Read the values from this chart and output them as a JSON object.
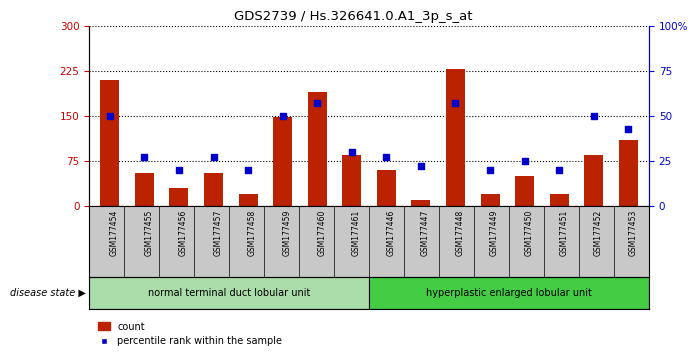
{
  "title": "GDS2739 / Hs.326641.0.A1_3p_s_at",
  "samples": [
    "GSM177454",
    "GSM177455",
    "GSM177456",
    "GSM177457",
    "GSM177458",
    "GSM177459",
    "GSM177460",
    "GSM177461",
    "GSM177446",
    "GSM177447",
    "GSM177448",
    "GSM177449",
    "GSM177450",
    "GSM177451",
    "GSM177452",
    "GSM177453"
  ],
  "counts": [
    210,
    55,
    30,
    55,
    20,
    148,
    190,
    85,
    60,
    10,
    228,
    20,
    50,
    20,
    85,
    110
  ],
  "percentiles": [
    50,
    27,
    20,
    27,
    20,
    50,
    57,
    30,
    27,
    22,
    57,
    20,
    25,
    20,
    50,
    43
  ],
  "group1_label": "normal terminal duct lobular unit",
  "group2_label": "hyperplastic enlarged lobular unit",
  "group1_count": 8,
  "group2_count": 8,
  "disease_state_label": "disease state",
  "left_axis_color": "#cc0000",
  "right_axis_color": "#0000cc",
  "bar_color": "#bb2200",
  "dot_color": "#0000cc",
  "left_ylim": [
    0,
    300
  ],
  "right_ylim": [
    0,
    100
  ],
  "left_yticks": [
    0,
    75,
    150,
    225,
    300
  ],
  "right_yticks": [
    0,
    25,
    50,
    75,
    100
  ],
  "right_yticklabels": [
    "0",
    "25",
    "50",
    "75",
    "100%"
  ],
  "group1_color": "#aaddaa",
  "group2_color": "#44cc44",
  "bg_color": "#c8c8c8",
  "legend_count_label": "count",
  "legend_pct_label": "percentile rank within the sample",
  "grid_style": "dotted"
}
